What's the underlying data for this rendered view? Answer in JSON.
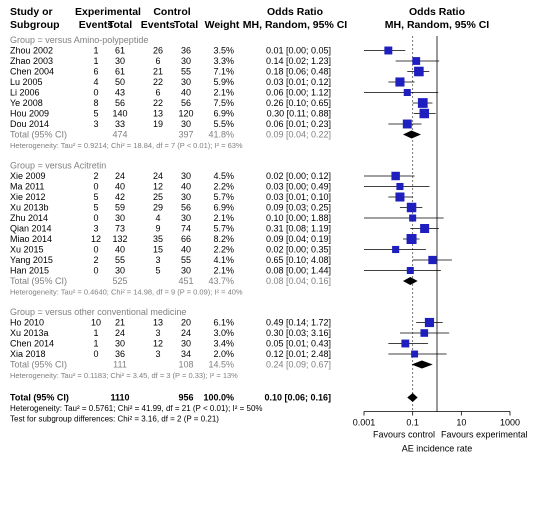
{
  "headers": {
    "study_1": "Study or",
    "study_2": "Subgroup",
    "exp": "Experimental",
    "ctrl": "Control",
    "events": "Events",
    "total": "Total",
    "weight": "Weight",
    "or_1": "Odds Ratio",
    "or_2": "MH, Random, 95% CI",
    "plot_1": "Odds Ratio",
    "plot_2": "MH, Random, 95% CI"
  },
  "axis": {
    "ticks": [
      "0.001",
      "0.1",
      "10",
      "1000"
    ],
    "favours_left": "Favours control",
    "favours_right": "Favours experimental",
    "xlabel": "AE incidence rate"
  },
  "groups": [
    {
      "title": "Group = versus Amino-polypeptide",
      "studies": [
        {
          "name": "Zhou 2002",
          "ee": "1",
          "et": "61",
          "ce": "26",
          "ct": "36",
          "w": "3.5%",
          "ci": "0.01 [0.00; 0.05]"
        },
        {
          "name": "Zhao 2003",
          "ee": "1",
          "et": "30",
          "ce": "6",
          "ct": "30",
          "w": "3.3%",
          "ci": "0.14 [0.02; 1.23]"
        },
        {
          "name": "Chen 2004",
          "ee": "6",
          "et": "61",
          "ce": "21",
          "ct": "55",
          "w": "7.1%",
          "ci": "0.18 [0.06; 0.48]"
        },
        {
          "name": "Lu 2005",
          "ee": "4",
          "et": "50",
          "ce": "22",
          "ct": "30",
          "w": "5.9%",
          "ci": "0.03 [0.01; 0.12]"
        },
        {
          "name": "Li 2006",
          "ee": "0",
          "et": "43",
          "ce": "6",
          "ct": "40",
          "w": "2.1%",
          "ci": "0.06 [0.00; 1.12]"
        },
        {
          "name": "Ye 2008",
          "ee": "8",
          "et": "56",
          "ce": "22",
          "ct": "56",
          "w": "7.5%",
          "ci": "0.26 [0.10; 0.65]"
        },
        {
          "name": "Hou 2009",
          "ee": "5",
          "et": "140",
          "ce": "13",
          "ct": "120",
          "w": "6.9%",
          "ci": "0.30 [0.11; 0.88]"
        },
        {
          "name": "Dou 2014",
          "ee": "3",
          "et": "33",
          "ce": "19",
          "ct": "30",
          "w": "5.5%",
          "ci": "0.06 [0.01; 0.23]"
        }
      ],
      "total": {
        "label": "Total (95% CI)",
        "et": "474",
        "ct": "397",
        "w": "41.8%",
        "ci": "0.09 [0.04; 0.22]"
      },
      "het": "Heterogeneity: Tau² = 0.9214; Chi² = 18.84, df = 7 (P < 0.01); I² = 63%"
    },
    {
      "title": "Group = versus Acitretin",
      "studies": [
        {
          "name": "Xie 2009",
          "ee": "2",
          "et": "24",
          "ce": "24",
          "ct": "30",
          "w": "4.5%",
          "ci": "0.02 [0.00; 0.12]"
        },
        {
          "name": "Ma 2011",
          "ee": "0",
          "et": "40",
          "ce": "12",
          "ct": "40",
          "w": "2.2%",
          "ci": "0.03 [0.00; 0.49]"
        },
        {
          "name": "Xie 2012",
          "ee": "5",
          "et": "42",
          "ce": "25",
          "ct": "30",
          "w": "5.7%",
          "ci": "0.03 [0.01; 0.10]"
        },
        {
          "name": "Xu 2013b",
          "ee": "5",
          "et": "59",
          "ce": "29",
          "ct": "56",
          "w": "6.9%",
          "ci": "0.09 [0.03; 0.25]"
        },
        {
          "name": "Zhu 2014",
          "ee": "0",
          "et": "30",
          "ce": "4",
          "ct": "30",
          "w": "2.1%",
          "ci": "0.10 [0.00; 1.88]"
        },
        {
          "name": "Qian 2014",
          "ee": "3",
          "et": "73",
          "ce": "9",
          "ct": "74",
          "w": "5.7%",
          "ci": "0.31 [0.08; 1.19]"
        },
        {
          "name": "Miao 2014",
          "ee": "12",
          "et": "132",
          "ce": "35",
          "ct": "66",
          "w": "8.2%",
          "ci": "0.09 [0.04; 0.19]"
        },
        {
          "name": "Xu 2015",
          "ee": "0",
          "et": "40",
          "ce": "15",
          "ct": "40",
          "w": "2.2%",
          "ci": "0.02 [0.00; 0.35]"
        },
        {
          "name": "Yang 2015",
          "ee": "2",
          "et": "55",
          "ce": "3",
          "ct": "55",
          "w": "4.1%",
          "ci": "0.65 [0.10; 4.08]"
        },
        {
          "name": "Han 2015",
          "ee": "0",
          "et": "30",
          "ce": "5",
          "ct": "30",
          "w": "2.1%",
          "ci": "0.08 [0.00; 1.44]"
        }
      ],
      "total": {
        "label": "Total (95% CI)",
        "et": "525",
        "ct": "451",
        "w": "43.7%",
        "ci": "0.08 [0.04; 0.16]"
      },
      "het": "Heterogeneity: Tau² = 0.4640; Chi² = 14.98, df = 9 (P = 0.09); I² = 40%"
    },
    {
      "title": "Group = versus other conventional medicine",
      "studies": [
        {
          "name": "Ho 2010",
          "ee": "10",
          "et": "21",
          "ce": "13",
          "ct": "20",
          "w": "6.1%",
          "ci": "0.49 [0.14; 1.72]"
        },
        {
          "name": "Xu 2013a",
          "ee": "1",
          "et": "24",
          "ce": "3",
          "ct": "24",
          "w": "3.0%",
          "ci": "0.30 [0.03; 3.16]"
        },
        {
          "name": "Chen 2014",
          "ee": "1",
          "et": "30",
          "ce": "12",
          "ct": "30",
          "w": "3.4%",
          "ci": "0.05 [0.01; 0.43]"
        },
        {
          "name": "Xia 2018",
          "ee": "0",
          "et": "36",
          "ce": "3",
          "ct": "34",
          "w": "2.0%",
          "ci": "0.12 [0.01; 2.48]"
        }
      ],
      "total": {
        "label": "Total (95% CI)",
        "et": "111",
        "ct": "108",
        "w": "14.5%",
        "ci": "0.24 [0.09; 0.67]"
      },
      "het": "Heterogeneity: Tau² = 0.1183; Chi² = 3.45, df = 3 (P = 0.33); I² = 13%"
    }
  ],
  "overall": {
    "label": "Total (95% CI)",
    "et": "1110",
    "ct": "956",
    "w": "100.0%",
    "ci": "0.10 [0.06; 0.16]",
    "het": "Heterogeneity: Tau² = 0.5761; Chi² = 41.99, df = 21 (P < 0.01); I² = 50%",
    "subgroup_test": "Test for subgroup differences: Chi² = 3.16, df = 2 (P = 0.21)"
  },
  "chart_data": {
    "type": "forest",
    "scale": "log",
    "xlim": [
      0.001,
      1000
    ],
    "ticks": [
      0.001,
      0.1,
      10,
      1000
    ],
    "null_value": 1,
    "overall_line": 0.1,
    "xlabel": "AE incidence rate",
    "favours_left": "Favours control",
    "favours_right": "Favours experimental",
    "groups": [
      {
        "name": "Group = versus Amino-polypeptide",
        "studies": [
          {
            "study": "Zhou 2002",
            "or": 0.01,
            "lo": 0.0,
            "hi": 0.05,
            "weight": 3.5
          },
          {
            "study": "Zhao 2003",
            "or": 0.14,
            "lo": 0.02,
            "hi": 1.23,
            "weight": 3.3
          },
          {
            "study": "Chen 2004",
            "or": 0.18,
            "lo": 0.06,
            "hi": 0.48,
            "weight": 7.1
          },
          {
            "study": "Lu 2005",
            "or": 0.03,
            "lo": 0.01,
            "hi": 0.12,
            "weight": 5.9
          },
          {
            "study": "Li 2006",
            "or": 0.06,
            "lo": 0.0,
            "hi": 1.12,
            "weight": 2.1
          },
          {
            "study": "Ye 2008",
            "or": 0.26,
            "lo": 0.1,
            "hi": 0.65,
            "weight": 7.5
          },
          {
            "study": "Hou 2009",
            "or": 0.3,
            "lo": 0.11,
            "hi": 0.88,
            "weight": 6.9
          },
          {
            "study": "Dou 2014",
            "or": 0.06,
            "lo": 0.01,
            "hi": 0.23,
            "weight": 5.5
          }
        ],
        "pooled": {
          "or": 0.09,
          "lo": 0.04,
          "hi": 0.22,
          "weight": 41.8
        }
      },
      {
        "name": "Group = versus Acitretin",
        "studies": [
          {
            "study": "Xie 2009",
            "or": 0.02,
            "lo": 0.0,
            "hi": 0.12,
            "weight": 4.5
          },
          {
            "study": "Ma 2011",
            "or": 0.03,
            "lo": 0.0,
            "hi": 0.49,
            "weight": 2.2
          },
          {
            "study": "Xie 2012",
            "or": 0.03,
            "lo": 0.01,
            "hi": 0.1,
            "weight": 5.7
          },
          {
            "study": "Xu 2013b",
            "or": 0.09,
            "lo": 0.03,
            "hi": 0.25,
            "weight": 6.9
          },
          {
            "study": "Zhu 2014",
            "or": 0.1,
            "lo": 0.0,
            "hi": 1.88,
            "weight": 2.1
          },
          {
            "study": "Qian 2014",
            "or": 0.31,
            "lo": 0.08,
            "hi": 1.19,
            "weight": 5.7
          },
          {
            "study": "Miao 2014",
            "or": 0.09,
            "lo": 0.04,
            "hi": 0.19,
            "weight": 8.2
          },
          {
            "study": "Xu 2015",
            "or": 0.02,
            "lo": 0.0,
            "hi": 0.35,
            "weight": 2.2
          },
          {
            "study": "Yang 2015",
            "or": 0.65,
            "lo": 0.1,
            "hi": 4.08,
            "weight": 4.1
          },
          {
            "study": "Han 2015",
            "or": 0.08,
            "lo": 0.0,
            "hi": 1.44,
            "weight": 2.1
          }
        ],
        "pooled": {
          "or": 0.08,
          "lo": 0.04,
          "hi": 0.16,
          "weight": 43.7
        }
      },
      {
        "name": "Group = versus other conventional medicine",
        "studies": [
          {
            "study": "Ho 2010",
            "or": 0.49,
            "lo": 0.14,
            "hi": 1.72,
            "weight": 6.1
          },
          {
            "study": "Xu 2013a",
            "or": 0.3,
            "lo": 0.03,
            "hi": 3.16,
            "weight": 3.0
          },
          {
            "study": "Chen 2014",
            "or": 0.05,
            "lo": 0.01,
            "hi": 0.43,
            "weight": 3.4
          },
          {
            "study": "Xia 2018",
            "or": 0.12,
            "lo": 0.01,
            "hi": 2.48,
            "weight": 2.0
          }
        ],
        "pooled": {
          "or": 0.24,
          "lo": 0.09,
          "hi": 0.67,
          "weight": 14.5
        }
      }
    ],
    "overall": {
      "or": 0.1,
      "lo": 0.06,
      "hi": 0.16,
      "weight": 100.0
    },
    "colors": {
      "square": "#1f1fbf",
      "diamond": "#000000",
      "text_muted": "#808080"
    }
  }
}
